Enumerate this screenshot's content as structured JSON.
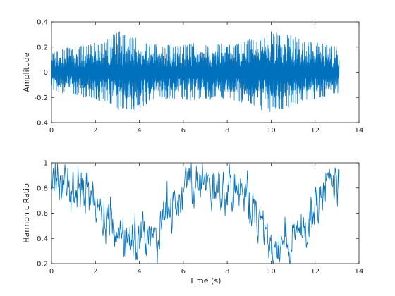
{
  "chart_data": [
    {
      "type": "line",
      "title": "",
      "xlabel": "",
      "ylabel": "Amplitude",
      "xlim": [
        0,
        14
      ],
      "ylim": [
        -0.4,
        0.4
      ],
      "xticks": [
        "0",
        "2",
        "4",
        "6",
        "8",
        "10",
        "12",
        "14"
      ],
      "yticks": [
        "-0.4",
        "-0.2",
        "0",
        "0.2",
        "0.4"
      ],
      "grid": false,
      "line_color": "#0072BD",
      "envelope": {
        "x": [
          0,
          0.5,
          1,
          1.5,
          2,
          2.5,
          3,
          3.5,
          4,
          4.5,
          5,
          5.5,
          6,
          6.5,
          7,
          7.5,
          8,
          8.5,
          9,
          9.5,
          10,
          10.5,
          11,
          11.5,
          12,
          12.5,
          13,
          13.1
        ],
        "upper": [
          0.15,
          0.19,
          0.2,
          0.22,
          0.24,
          0.27,
          0.33,
          0.3,
          0.27,
          0.23,
          0.22,
          0.23,
          0.22,
          0.24,
          0.22,
          0.23,
          0.22,
          0.23,
          0.26,
          0.28,
          0.33,
          0.33,
          0.29,
          0.24,
          0.24,
          0.23,
          0.2,
          0.18
        ],
        "lower": [
          -0.15,
          -0.17,
          -0.18,
          -0.2,
          -0.22,
          -0.25,
          -0.3,
          -0.32,
          -0.29,
          -0.24,
          -0.22,
          -0.21,
          -0.22,
          -0.23,
          -0.22,
          -0.22,
          -0.22,
          -0.23,
          -0.27,
          -0.3,
          -0.32,
          -0.31,
          -0.27,
          -0.22,
          -0.22,
          -0.21,
          -0.18,
          -0.16
        ]
      }
    },
    {
      "type": "line",
      "title": "",
      "xlabel": "Time (s)",
      "ylabel": "Harmonic Ratio",
      "xlim": [
        0,
        14
      ],
      "ylim": [
        0.2,
        1
      ],
      "xticks": [
        "0",
        "2",
        "4",
        "6",
        "8",
        "10",
        "12",
        "14"
      ],
      "yticks": [
        "0.2",
        "0.4",
        "0.6",
        "0.8",
        "1"
      ],
      "grid": false,
      "line_color": "#0072BD",
      "trend": {
        "x": [
          0,
          0.5,
          1,
          1.5,
          2,
          2.5,
          3,
          3.5,
          4,
          4.5,
          5,
          5.5,
          6,
          6.5,
          7,
          7.5,
          8,
          8.5,
          9,
          9.5,
          10,
          10.5,
          11,
          11.5,
          12,
          12.5,
          13,
          13.1
        ],
        "y": [
          0.85,
          0.82,
          0.8,
          0.78,
          0.72,
          0.58,
          0.45,
          0.4,
          0.38,
          0.42,
          0.55,
          0.7,
          0.8,
          0.85,
          0.85,
          0.84,
          0.82,
          0.8,
          0.68,
          0.55,
          0.42,
          0.4,
          0.42,
          0.5,
          0.72,
          0.82,
          0.85,
          0.82
        ]
      },
      "range": [
        0.2,
        1
      ]
    }
  ]
}
